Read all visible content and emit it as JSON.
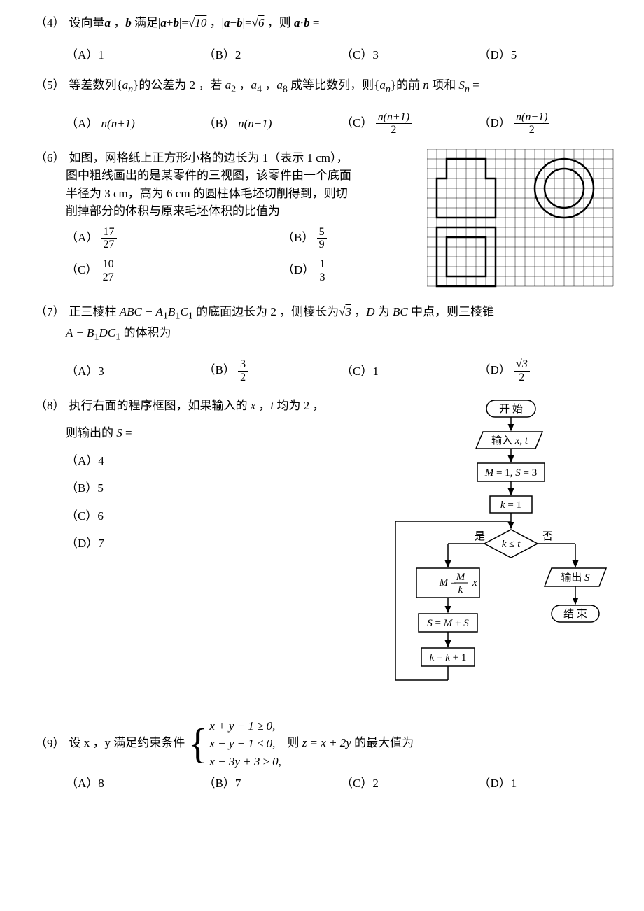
{
  "q4": {
    "num": "（4）",
    "stem_parts": [
      "设向量",
      "a",
      "，",
      "b",
      " 满足|",
      "a",
      "+",
      "b",
      "|=√10 ，|",
      "a",
      "-",
      "b",
      "|=√6 ，则 ",
      "a",
      "·",
      "b",
      " ="
    ],
    "options": {
      "A": "（A）1",
      "B": "（B）2",
      "C": "（C）3",
      "D": "（D）5"
    }
  },
  "q5": {
    "num": "（5）",
    "stem": "等差数列{aₙ}的公差为 2 ，若 a₂ ，a₄ ，a₈ 成等比数列，则{aₙ}的前 n 项和 Sₙ =",
    "options": {
      "A_label": "（A）",
      "A_text": "n(n+1)",
      "B_label": "（B）",
      "B_text": "n(n−1)",
      "C_label": "（C）",
      "C_num": "n(n+1)",
      "C_den": "2",
      "D_label": "（D）",
      "D_num": "n(n−1)",
      "D_den": "2"
    }
  },
  "q6": {
    "num": "（6）",
    "line1": "如图，网格纸上正方形小格的边长为 1（表示 1 cm），",
    "line2": "图中粗线画出的是某零件的三视图，该零件由一个底面",
    "line3": "半径为 3 cm，高为 6 cm 的圆柱体毛坯切削得到，则切",
    "line4": "削掉部分的体积与原来毛坯体积的比值为",
    "options": {
      "A_label": "（A）",
      "A_num": "17",
      "A_den": "27",
      "B_label": "（B）",
      "B_num": "5",
      "B_den": "9",
      "C_label": "（C）",
      "C_num": "10",
      "C_den": "27",
      "D_label": "（D）",
      "D_num": "1",
      "D_den": "3"
    },
    "grid": {
      "cols": 19,
      "rows": 14,
      "cell": 14
    }
  },
  "q7": {
    "num": "（7）",
    "stem1": "正三棱柱 ABC − A₁B₁C₁ 的底面边长为 2 ，侧棱长为√3 ，D 为 BC 中点，则三棱锥",
    "stem2": "A − B₁DC₁ 的体积为",
    "options": {
      "A": "（A）3",
      "B_label": "（B）",
      "B_num": "3",
      "B_den": "2",
      "C": "（C）1",
      "D_label": "（D）",
      "D_num": "√3",
      "D_den": "2"
    }
  },
  "q8": {
    "num": "（8）",
    "stem1": "执行右面的程序框图，如果输入的 x ，t 均为 2 ，",
    "stem2": "则输出的 S =",
    "options": {
      "A": "（A）4",
      "B": "（B）5",
      "C": "（C）6",
      "D": "（D）7"
    },
    "flow": {
      "start": "开 始",
      "input": "输入 x, t",
      "init1": "M = 1, S = 3",
      "init2": "k = 1",
      "cond": "k ≤ t",
      "yes": "是",
      "no": "否",
      "calc1_num": "M",
      "calc1_den": "k",
      "calc1_pre": "M =",
      "calc1_post": " x",
      "calc2": "S = M + S",
      "calc3": "k = k + 1",
      "output": "输出 S",
      "end": "结 束"
    }
  },
  "q9": {
    "num": "（9）",
    "pre": "设 x ，y 满足约束条件",
    "sys1": "x + y − 1 ≥ 0,",
    "sys2": "x − y − 1 ≤ 0,",
    "sys3": "x − 3y + 3 ≥ 0,",
    "post": "则 z = x + 2y 的最大值为",
    "options": {
      "A": "（A）8",
      "B": "（B）7",
      "C": "（C）2",
      "D": "（D）1"
    }
  }
}
